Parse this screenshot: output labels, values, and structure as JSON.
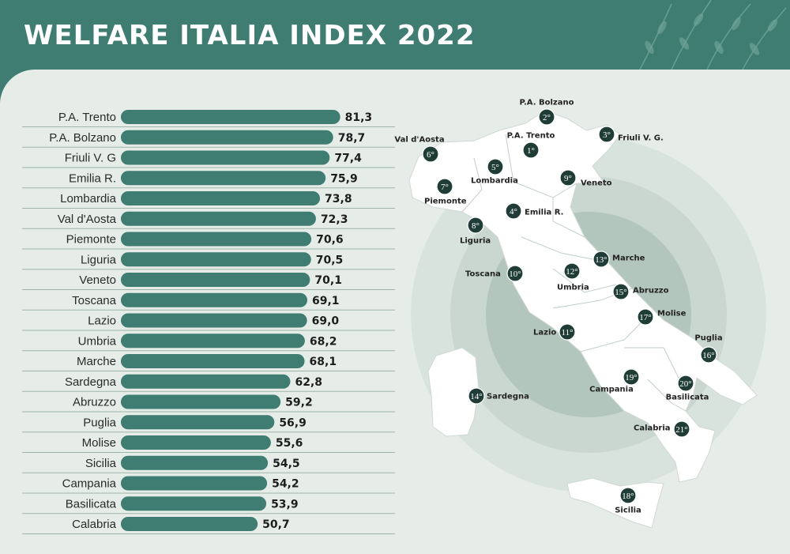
{
  "title": "WELFARE ITALIA INDEX 2022",
  "chart_data": {
    "type": "bar",
    "orientation": "horizontal",
    "categories": [
      "P.A. Trento",
      "P.A. Bolzano",
      "Friuli V. G",
      "Emilia R.",
      "Lombardia",
      "Val d'Aosta",
      "Piemonte",
      "Liguria",
      "Veneto",
      "Toscana",
      "Lazio",
      "Umbria",
      "Marche",
      "Sardegna",
      "Abruzzo",
      "Puglia",
      "Molise",
      "Sicilia",
      "Campania",
      "Basilicata",
      "Calabria"
    ],
    "values": [
      81.3,
      78.7,
      77.4,
      75.9,
      73.8,
      72.3,
      70.6,
      70.5,
      70.1,
      69.1,
      69.0,
      68.2,
      68.1,
      62.8,
      59.2,
      56.9,
      55.6,
      54.5,
      54.2,
      53.9,
      50.7
    ],
    "value_labels": [
      "81,3",
      "78,7",
      "77,4",
      "75,9",
      "73,8",
      "72,3",
      "70,6",
      "70,5",
      "70,1",
      "69,1",
      "69,0",
      "68,2",
      "68,1",
      "62,8",
      "59,2",
      "56,9",
      "55,6",
      "54,5",
      "54,2",
      "53,9",
      "50,7"
    ],
    "bar_color": "#3f7d73"
  },
  "map": {
    "region_color": "#ffffff",
    "marker_color": "#1f3d36",
    "markers": [
      {
        "rank": "2°",
        "name": "P.A. Bolzano"
      },
      {
        "rank": "1°",
        "name": "P.A. Trento"
      },
      {
        "rank": "3°",
        "name": "Friuli V. G."
      },
      {
        "rank": "6°",
        "name": "Val d'Aosta"
      },
      {
        "rank": "5°",
        "name": "Lombardia"
      },
      {
        "rank": "9°",
        "name": "Veneto"
      },
      {
        "rank": "7°",
        "name": "Piemonte"
      },
      {
        "rank": "4°",
        "name": "Emilia R."
      },
      {
        "rank": "8°",
        "name": "Liguria"
      },
      {
        "rank": "13°",
        "name": "Marche"
      },
      {
        "rank": "12°",
        "name": "Umbria"
      },
      {
        "rank": "10°",
        "name": "Toscana"
      },
      {
        "rank": "15°",
        "name": "Abruzzo"
      },
      {
        "rank": "17°",
        "name": "Molise"
      },
      {
        "rank": "11°",
        "name": "Lazio"
      },
      {
        "rank": "16°",
        "name": "Puglia"
      },
      {
        "rank": "19°",
        "name": "Campania"
      },
      {
        "rank": "20°",
        "name": "Basilicata"
      },
      {
        "rank": "14°",
        "name": "Sardegna"
      },
      {
        "rank": "21°",
        "name": "Calabria"
      },
      {
        "rank": "18°",
        "name": "Sicilia"
      }
    ]
  },
  "colors": {
    "header": "#3f7d73",
    "panel": "#e6ede9",
    "circles": [
      "#d9e3de",
      "#c9d7d0",
      "#b2c6bd"
    ]
  }
}
